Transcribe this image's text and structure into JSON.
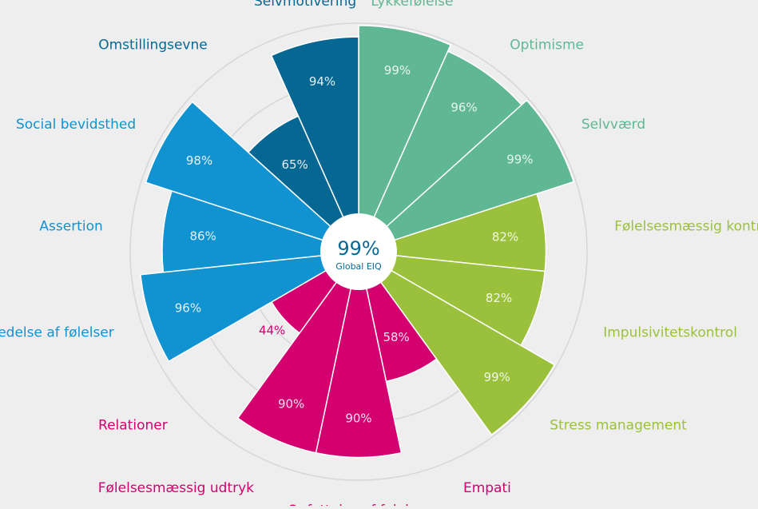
{
  "chart_data": {
    "type": "polar-area",
    "center": {
      "value_label": "99%",
      "caption": "Global EIQ"
    },
    "scale_max": 100,
    "grid_rings": [
      50,
      75,
      100
    ],
    "categories": [
      {
        "label": "Lykkefølelse",
        "value": 99,
        "value_label": "99%",
        "color": "#60b794",
        "label_color": "#60b794",
        "value_color": "#e6f5ee"
      },
      {
        "label": "Optimisme",
        "value": 96,
        "value_label": "96%",
        "color": "#60b794",
        "label_color": "#60b794",
        "value_color": "#e6f5ee"
      },
      {
        "label": "Selvværd",
        "value": 99,
        "value_label": "99%",
        "color": "#60b794",
        "label_color": "#60b794",
        "value_color": "#e6f5ee"
      },
      {
        "label": "Følelsesmæssig kontrol",
        "value": 82,
        "value_label": "82%",
        "color": "#9bc13c",
        "label_color": "#9bc13c",
        "value_color": "#f1f7e2"
      },
      {
        "label": "Impulsivitetskontrol",
        "value": 82,
        "value_label": "82%",
        "color": "#9bc13c",
        "label_color": "#9bc13c",
        "value_color": "#f1f7e2"
      },
      {
        "label": "Stress management",
        "value": 99,
        "value_label": "99%",
        "color": "#9bc13c",
        "label_color": "#9bc13c",
        "value_color": "#f1f7e2"
      },
      {
        "label": "Empati",
        "value": 58,
        "value_label": "58%",
        "color": "#d4006f",
        "label_color": "#d4006f",
        "value_color": "#fbe0ee"
      },
      {
        "label": "Opfattelse af følelser",
        "value": 90,
        "value_label": "90%",
        "color": "#d4006f",
        "label_color": "#d4006f",
        "value_color": "#fbe0ee"
      },
      {
        "label": "Følelsesmæssig udtryk",
        "value": 90,
        "value_label": "90%",
        "color": "#d4006f",
        "label_color": "#d4006f",
        "value_color": "#fbe0ee"
      },
      {
        "label": "Relationer",
        "value": 44,
        "value_label": "44%",
        "color": "#d4006f",
        "label_color": "#d4006f",
        "value_color": "#d4006f"
      },
      {
        "label": "Ledelse af følelser",
        "value": 96,
        "value_label": "96%",
        "color": "#1192d1",
        "label_color": "#1192d1",
        "value_color": "#e2f2fb"
      },
      {
        "label": "Assertion",
        "value": 86,
        "value_label": "86%",
        "color": "#1192d1",
        "label_color": "#1192d1",
        "value_color": "#e2f2fb"
      },
      {
        "label": "Social bevidsthed",
        "value": 98,
        "value_label": "98%",
        "color": "#1192d1",
        "label_color": "#1192d1",
        "value_color": "#e2f2fb"
      },
      {
        "label": "Omstillingsevne",
        "value": 65,
        "value_label": "65%",
        "color": "#076793",
        "label_color": "#076793",
        "value_color": "#e0eef5"
      },
      {
        "label": "Selvmotivering",
        "value": 94,
        "value_label": "94%",
        "color": "#076793",
        "label_color": "#076793",
        "value_color": "#e0eef5"
      }
    ]
  }
}
